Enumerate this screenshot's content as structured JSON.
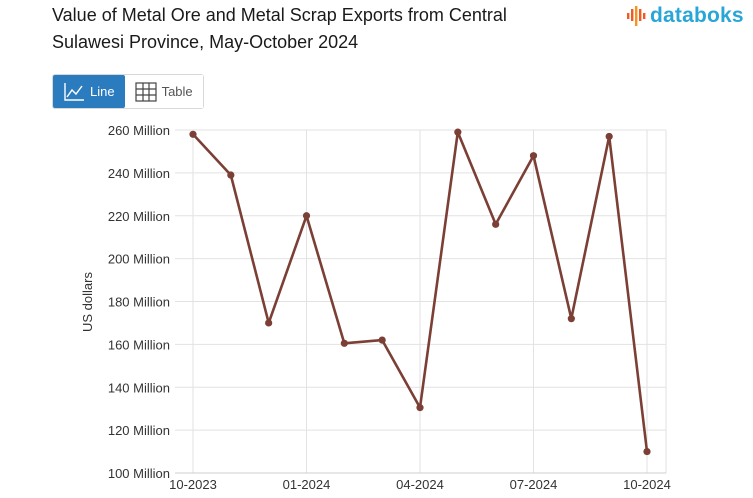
{
  "header": {
    "title": "Value of Metal Ore and Metal Scrap Exports from Central Sulawesi Province, May-October 2024",
    "logo_text": "databoks"
  },
  "view_toggle": {
    "line_label": "Line",
    "table_label": "Table",
    "active": "line"
  },
  "colors": {
    "series": "#7b3f35",
    "grid": "#e2e2e2",
    "toggle_active": "#2b7bbf",
    "logo": "#29a6d8"
  },
  "chart_data": {
    "type": "line",
    "title": "Value of Metal Ore and Metal Scrap Exports from Central Sulawesi Province, May-October 2024",
    "xlabel": "",
    "ylabel": "US dollars",
    "x": [
      "10-2023",
      "11-2023",
      "12-2023",
      "01-2024",
      "02-2024",
      "03-2024",
      "04-2024",
      "05-2024",
      "06-2024",
      "07-2024",
      "08-2024",
      "09-2024",
      "10-2024"
    ],
    "x_tick_labels": [
      "10-2023",
      "01-2024",
      "04-2024",
      "07-2024",
      "10-2024"
    ],
    "y_tick_labels": [
      "100 Million",
      "120 Million",
      "140 Million",
      "160 Million",
      "180 Million",
      "200 Million",
      "220 Million",
      "240 Million",
      "260 Million"
    ],
    "series": [
      {
        "values": [
          258,
          239,
          170,
          220,
          160.5,
          162,
          130.5,
          259,
          216,
          248,
          172,
          257,
          110
        ]
      }
    ],
    "units_note": "values in millions of US dollars",
    "ylim": [
      100,
      260
    ],
    "grid": true,
    "legend": "none"
  }
}
